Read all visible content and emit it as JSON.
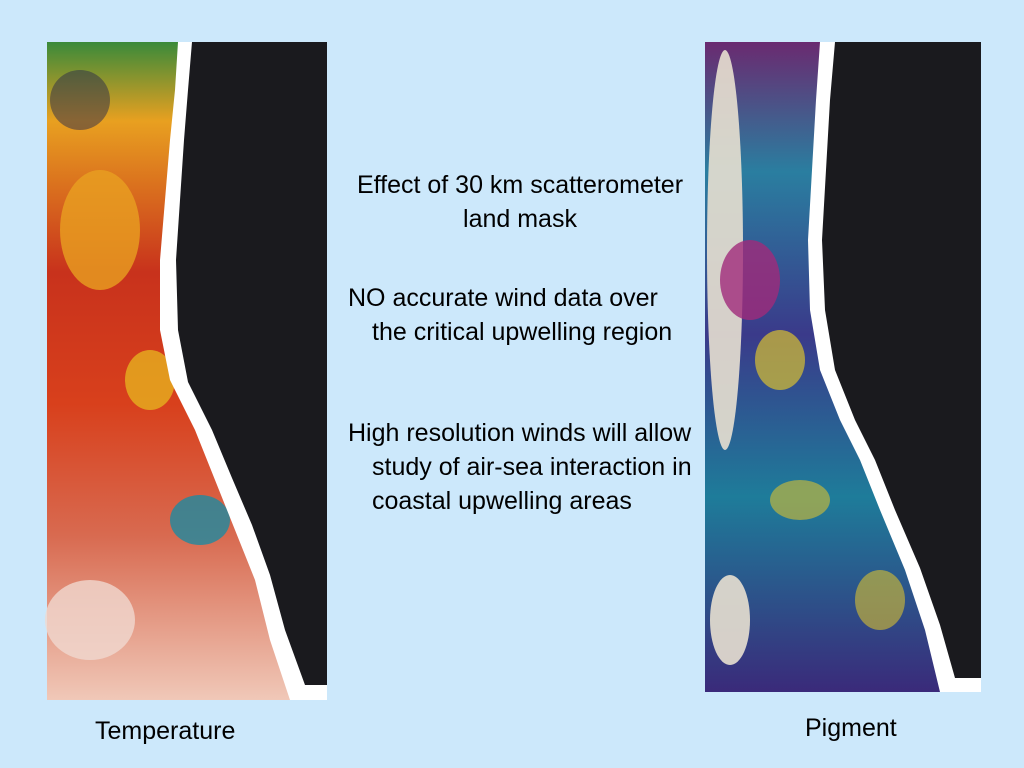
{
  "slide": {
    "title": "Effect of 30 km scatterometer land mask",
    "bullets": [
      "NO accurate wind data over the critical upwelling region",
      "High resolution winds will allow study of air-sea interaction in coastal upwelling areas"
    ],
    "captions": [
      "Temperature",
      "Pigment"
    ]
  }
}
